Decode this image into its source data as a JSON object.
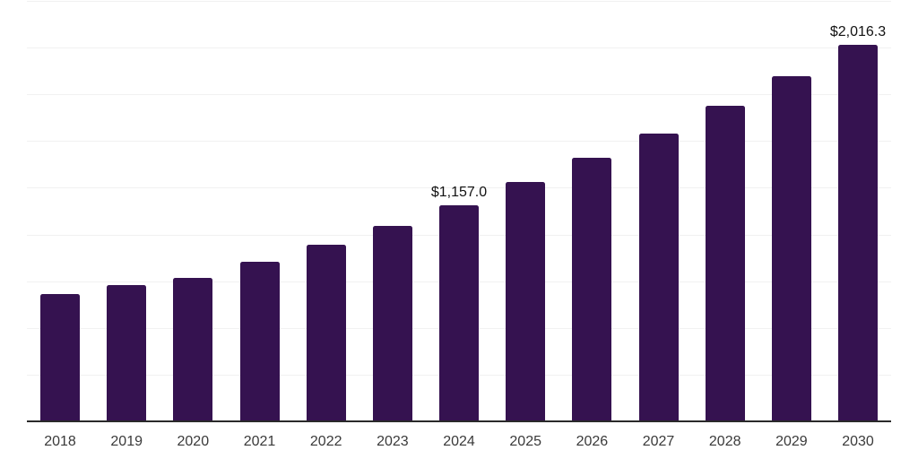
{
  "chart_data": {
    "type": "bar",
    "title": "",
    "xlabel": "",
    "ylabel": "",
    "categories": [
      "2018",
      "2019",
      "2020",
      "2021",
      "2022",
      "2023",
      "2024",
      "2025",
      "2026",
      "2027",
      "2028",
      "2029",
      "2030"
    ],
    "values": [
      682,
      730,
      768,
      854,
      946,
      1046,
      1157.0,
      1282,
      1411,
      1541,
      1690,
      1848,
      2016.3
    ],
    "value_labels": [
      {
        "index": 6,
        "text": "$1,157.0"
      },
      {
        "index": 12,
        "text": "$2,016.3"
      }
    ],
    "ylim": [
      0,
      2250
    ],
    "gridline_step": 250,
    "grid": true,
    "legend_position": "none",
    "y_axis_labels_shown": false,
    "colors": {
      "bar": "#351250",
      "grid": "#f1f1f1",
      "axis": "#2a2a2a",
      "tick_label": "#3a3a3a",
      "value_label": "#121212",
      "background": "#ffffff"
    }
  }
}
